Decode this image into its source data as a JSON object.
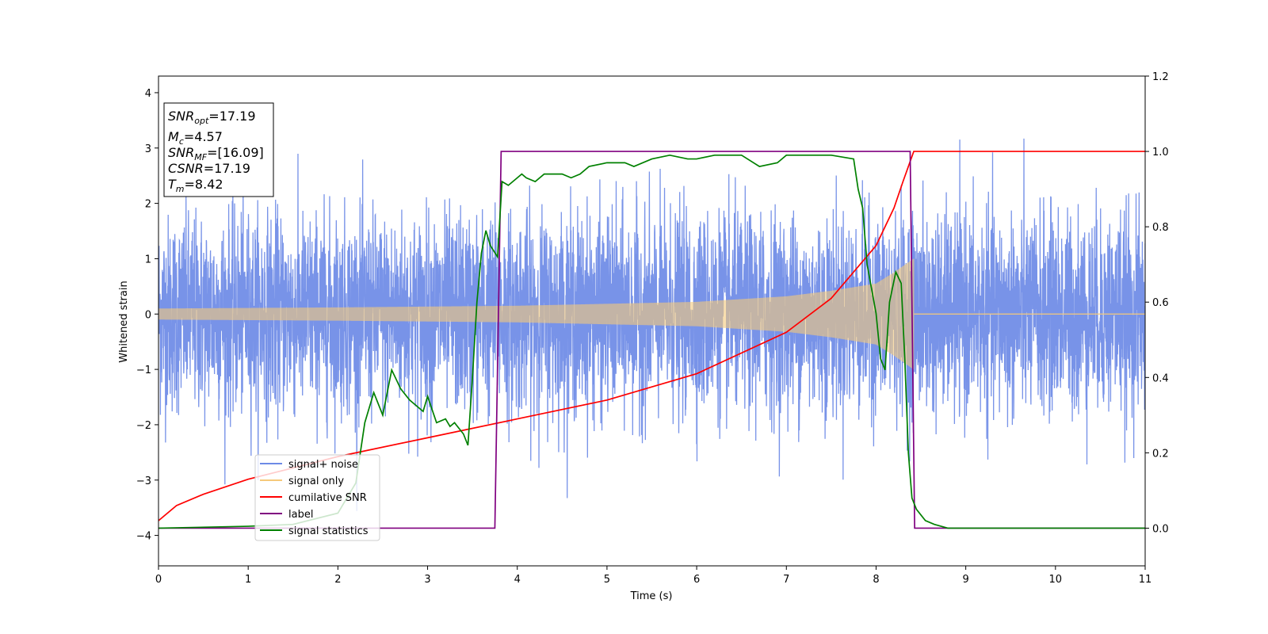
{
  "chart_data": {
    "type": "line",
    "title": "",
    "xlabel": "Time (s)",
    "ylabel": "Whitened strain",
    "xlim": [
      0,
      11
    ],
    "ylim_left": [
      -4.55,
      4.3
    ],
    "ylim_right": [
      -0.1,
      1.2
    ],
    "x_ticks": [
      0,
      1,
      2,
      3,
      4,
      5,
      6,
      7,
      8,
      9,
      10,
      11
    ],
    "y_left_ticks": [
      -4,
      -3,
      -2,
      -1,
      0,
      1,
      2,
      3,
      4
    ],
    "y_right_ticks": [
      0.0,
      0.2,
      0.4,
      0.6,
      0.8,
      1.0,
      1.2
    ],
    "grid": false,
    "legend_position": "lower-left",
    "legend": [
      {
        "name": "signal+ noise",
        "color": "#6d8ae6"
      },
      {
        "name": "signal only",
        "color": "#f5c97a"
      },
      {
        "name": "cumilative SNR",
        "color": "#ff0000"
      },
      {
        "name": "label",
        "color": "#800080"
      },
      {
        "name": "signal statistics",
        "color": "#008000"
      }
    ],
    "info_box": [
      {
        "sym": "SNR",
        "sub": "opt",
        "val": "=17.19"
      },
      {
        "sym": "M",
        "sub": "c",
        "val": "=4.57"
      },
      {
        "sym": "SNR",
        "sub": "MF",
        "val": "=[16.09]"
      },
      {
        "sym": "CSNR",
        "sub": "",
        "val": "=17.19"
      },
      {
        "sym": "T",
        "sub": "m",
        "val": "=8.42"
      }
    ],
    "series": [
      {
        "name": "signal+ noise",
        "axis": "left",
        "style": "noise",
        "envelope": {
          "x": [
            0,
            11
          ],
          "p99_low": -2.3,
          "p99_high": 2.3,
          "min": -4.15,
          "max": 3.9
        }
      },
      {
        "name": "signal only",
        "axis": "left",
        "style": "chirp",
        "end_time": 8.42,
        "amplitude": {
          "x": [
            0,
            2,
            4,
            6,
            7,
            7.5,
            8,
            8.2,
            8.42
          ],
          "y": [
            0.1,
            0.12,
            0.15,
            0.22,
            0.32,
            0.42,
            0.55,
            0.75,
            1.0
          ]
        }
      },
      {
        "name": "cumilative SNR",
        "axis": "right",
        "x": [
          0,
          0.2,
          0.5,
          1,
          2,
          3,
          4,
          5,
          6,
          7,
          7.5,
          8,
          8.2,
          8.3,
          8.42,
          11
        ],
        "y": [
          0.02,
          0.06,
          0.09,
          0.13,
          0.19,
          0.24,
          0.29,
          0.34,
          0.41,
          0.52,
          0.61,
          0.75,
          0.85,
          0.92,
          1.0,
          1.0
        ]
      },
      {
        "name": "label",
        "axis": "right",
        "x": [
          0,
          3.75,
          3.82,
          8.38,
          8.43,
          11
        ],
        "y": [
          0,
          0,
          1,
          1,
          0,
          0
        ]
      },
      {
        "name": "signal statistics",
        "axis": "right",
        "x": [
          0,
          1.0,
          1.5,
          2.0,
          2.2,
          2.3,
          2.4,
          2.5,
          2.6,
          2.7,
          2.8,
          2.9,
          2.95,
          3.0,
          3.1,
          3.2,
          3.25,
          3.3,
          3.4,
          3.45,
          3.5,
          3.55,
          3.6,
          3.65,
          3.7,
          3.78,
          3.83,
          3.9,
          4.0,
          4.05,
          4.1,
          4.2,
          4.3,
          4.5,
          4.6,
          4.7,
          4.8,
          5.0,
          5.2,
          5.3,
          5.5,
          5.7,
          5.9,
          6.0,
          6.2,
          6.5,
          6.7,
          6.9,
          7.0,
          7.2,
          7.5,
          7.75,
          7.8,
          7.85,
          7.9,
          8.0,
          8.05,
          8.1,
          8.15,
          8.22,
          8.28,
          8.32,
          8.36,
          8.4,
          8.45,
          8.55,
          8.65,
          8.8,
          9,
          11
        ],
        "y": [
          0.0,
          0.005,
          0.01,
          0.04,
          0.12,
          0.28,
          0.36,
          0.3,
          0.42,
          0.37,
          0.34,
          0.32,
          0.31,
          0.35,
          0.28,
          0.29,
          0.27,
          0.28,
          0.25,
          0.22,
          0.4,
          0.6,
          0.73,
          0.79,
          0.75,
          0.72,
          0.92,
          0.91,
          0.93,
          0.94,
          0.93,
          0.92,
          0.94,
          0.94,
          0.93,
          0.94,
          0.96,
          0.97,
          0.97,
          0.96,
          0.98,
          0.99,
          0.98,
          0.98,
          0.99,
          0.99,
          0.96,
          0.97,
          0.99,
          0.99,
          0.99,
          0.98,
          0.9,
          0.85,
          0.7,
          0.57,
          0.45,
          0.42,
          0.6,
          0.68,
          0.65,
          0.45,
          0.2,
          0.08,
          0.05,
          0.02,
          0.01,
          0.0,
          0.0,
          0.0
        ]
      }
    ]
  }
}
